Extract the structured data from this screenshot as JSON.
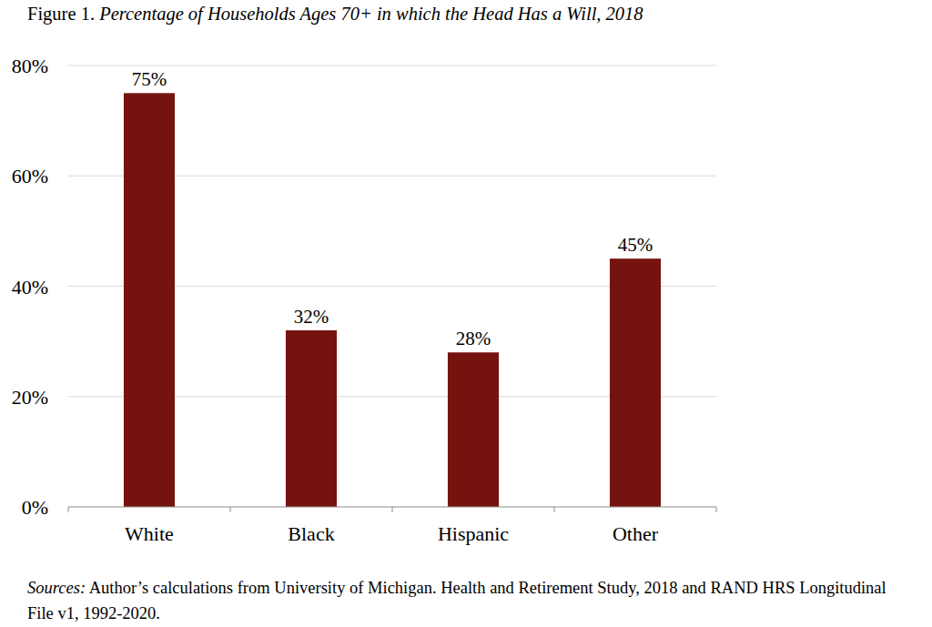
{
  "chart_data": {
    "type": "bar",
    "title": "Figure 1. Percentage of Households Ages 70+ in which the Head Has a Will, 2018",
    "categories": [
      "White",
      "Black",
      "Hispanic",
      "Other"
    ],
    "values": [
      75,
      32,
      28,
      45
    ],
    "value_labels": [
      "75%",
      "32%",
      "28%",
      "45%"
    ],
    "color": "#75140f",
    "ylim": [
      0,
      80
    ],
    "yticks": [
      {
        "value": 0,
        "label": "0%"
      },
      {
        "value": 20,
        "label": "20%"
      },
      {
        "value": 40,
        "label": "40%"
      },
      {
        "value": 60,
        "label": "60%"
      },
      {
        "value": 80,
        "label": "80%"
      }
    ],
    "grid": true,
    "data_labels": true,
    "source": "Sources: Author’s calculations from University of Michigan. Health and Retirement Study, 2018 and RAND HRS Longitudinal File v1, 1992-2020."
  }
}
